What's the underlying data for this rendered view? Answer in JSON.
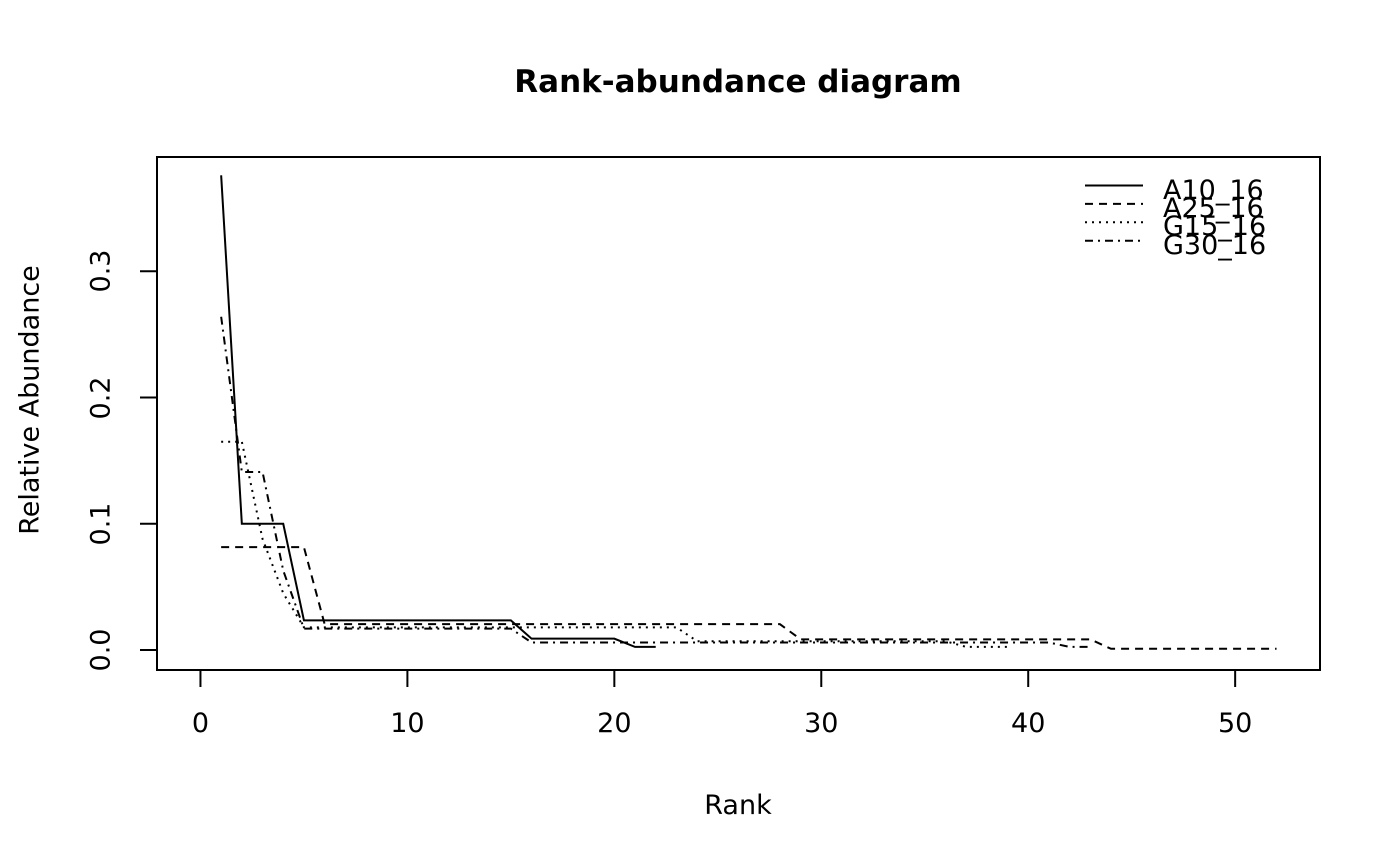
{
  "chart_data": {
    "type": "line",
    "title": "Rank-abundance diagram",
    "xlabel": "Rank",
    "ylabel": "Relative Abundance",
    "x_is_rank": true,
    "xlim": [
      -2.1,
      54.1
    ],
    "ylim": [
      -0.0158,
      0.3905
    ],
    "x_ticks": [
      "0",
      "10",
      "20",
      "30",
      "40",
      "50"
    ],
    "x_tick_values": [
      0,
      10,
      20,
      30,
      40,
      50
    ],
    "y_ticks": [
      "0.0",
      "0.1",
      "0.2",
      "0.3"
    ],
    "y_tick_values": [
      0.0,
      0.1,
      0.2,
      0.3
    ],
    "grid": false,
    "background_color": "#ffffff",
    "axis_color": "#000000",
    "legend_position": "top-right-inside",
    "series": [
      {
        "name": "A10_16",
        "linestyle": "solid",
        "color": "#000000",
        "values": [
          0.376,
          0.1,
          0.1,
          0.1,
          0.0235,
          0.0235,
          0.0235,
          0.0235,
          0.0235,
          0.0235,
          0.0235,
          0.0235,
          0.0235,
          0.0235,
          0.0235,
          0.009,
          0.009,
          0.009,
          0.009,
          0.009,
          0.0025,
          0.0025
        ]
      },
      {
        "name": "A25_16",
        "linestyle": "dashed",
        "color": "#000000",
        "values": [
          0.0815,
          0.0815,
          0.0815,
          0.0815,
          0.0815,
          0.0205,
          0.0205,
          0.0205,
          0.0205,
          0.0205,
          0.0205,
          0.0205,
          0.0205,
          0.0205,
          0.0205,
          0.0205,
          0.0205,
          0.0205,
          0.0205,
          0.0205,
          0.0205,
          0.0205,
          0.0205,
          0.0205,
          0.0205,
          0.0205,
          0.0205,
          0.0205,
          0.0085,
          0.0085,
          0.0085,
          0.0085,
          0.0085,
          0.0085,
          0.0085,
          0.0085,
          0.0085,
          0.0085,
          0.0085,
          0.0085,
          0.0085,
          0.0085,
          0.0085,
          0.001,
          0.001,
          0.001,
          0.001,
          0.001,
          0.001,
          0.001,
          0.001,
          0.001
        ]
      },
      {
        "name": "G15_16",
        "linestyle": "dotted",
        "color": "#000000",
        "values": [
          0.165,
          0.165,
          0.088,
          0.045,
          0.018,
          0.018,
          0.018,
          0.018,
          0.018,
          0.018,
          0.018,
          0.018,
          0.018,
          0.018,
          0.018,
          0.018,
          0.018,
          0.018,
          0.018,
          0.018,
          0.018,
          0.018,
          0.018,
          0.007,
          0.007,
          0.007,
          0.007,
          0.007,
          0.007,
          0.007,
          0.007,
          0.007,
          0.007,
          0.007,
          0.007,
          0.007,
          0.0025,
          0.0025,
          0.0025
        ]
      },
      {
        "name": "G30_16",
        "linestyle": "dashdot",
        "color": "#000000",
        "values": [
          0.264,
          0.141,
          0.141,
          0.063,
          0.017,
          0.017,
          0.017,
          0.017,
          0.017,
          0.017,
          0.017,
          0.017,
          0.017,
          0.017,
          0.017,
          0.006,
          0.006,
          0.006,
          0.006,
          0.006,
          0.006,
          0.006,
          0.006,
          0.006,
          0.006,
          0.006,
          0.006,
          0.006,
          0.006,
          0.006,
          0.006,
          0.006,
          0.006,
          0.006,
          0.006,
          0.006,
          0.006,
          0.006,
          0.006,
          0.006,
          0.006,
          0.0025,
          0.0025
        ]
      }
    ]
  }
}
